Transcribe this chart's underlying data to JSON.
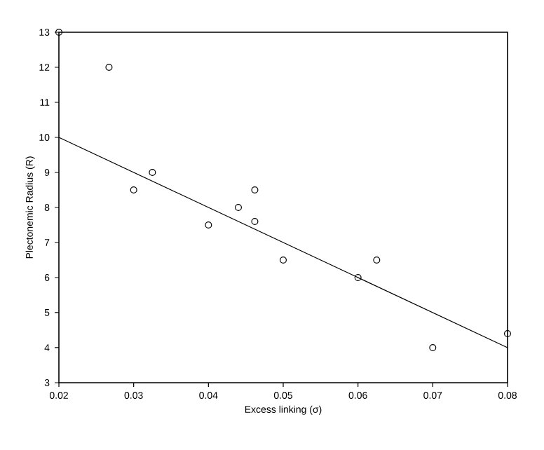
{
  "chart_data": {
    "type": "scatter",
    "xlabel": "Excess linking (σ)",
    "ylabel": "Plectonemic Radius (R)",
    "xlim": [
      0.02,
      0.08
    ],
    "xticks": [
      0.02,
      0.03,
      0.04,
      0.05,
      0.06,
      0.07,
      0.08
    ],
    "ylim": [
      3,
      13
    ],
    "yticks": [
      3,
      4,
      5,
      6,
      7,
      8,
      9,
      10,
      11,
      12,
      13
    ],
    "grid": false,
    "series": [
      {
        "marker": "circle",
        "color": "#000000",
        "x": [
          0.02,
          0.0267,
          0.03,
          0.0325,
          0.04,
          0.044,
          0.0462,
          0.0462,
          0.05,
          0.06,
          0.0625,
          0.07,
          0.08
        ],
        "values": [
          13,
          12,
          8.5,
          9,
          7.5,
          8,
          8.5,
          7.6,
          6.5,
          6,
          6.5,
          4,
          4.4
        ]
      },
      {
        "type": "line",
        "marker": "none",
        "line_style": "solid",
        "color": "#000000",
        "x": [
          0.02,
          0.08
        ],
        "values": [
          10,
          4
        ]
      }
    ]
  }
}
